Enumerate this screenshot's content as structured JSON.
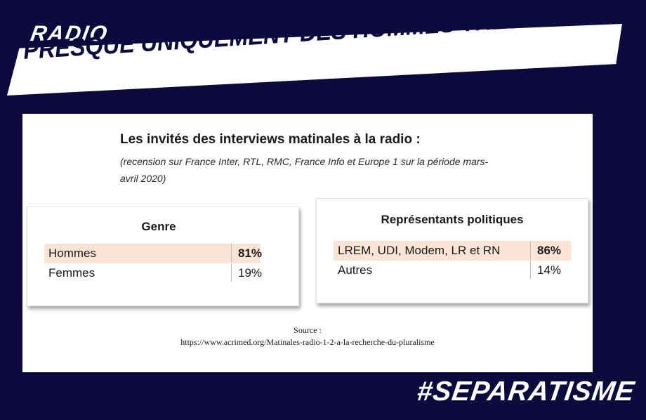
{
  "header": {
    "kicker": "RADIO",
    "headline": "PRESQUE UNIQUEMENT DES HOMMES TRÈS À DROITE"
  },
  "card": {
    "title": "Les invités des interviews matinales à la radio :",
    "subtitle": "(recension sur France Inter, RTL, RMC, France Info et Europe 1 sur la période mars-avril 2020)",
    "tables": [
      {
        "heading": "Genre",
        "rows": [
          {
            "label": "Hommes",
            "value": "81%",
            "highlight": true
          },
          {
            "label": "Femmes",
            "value": "19%",
            "highlight": false
          }
        ]
      },
      {
        "heading": "Représentants politiques",
        "rows": [
          {
            "label": "LREM, UDI, Modem, LR et RN",
            "value": "86%",
            "highlight": true
          },
          {
            "label": "Autres",
            "value": "14%",
            "highlight": false
          }
        ]
      }
    ],
    "source_label": "Source :",
    "source_url": "https://www.acrimed.org/Matinales-radio-1-2-a-la-recherche-du-pluralisme"
  },
  "footer": {
    "hashtag": "#SEPARATISME"
  },
  "colors": {
    "background": "#0c0a3d",
    "banner": "#ffffff",
    "highlight": "#fbe3d6"
  }
}
